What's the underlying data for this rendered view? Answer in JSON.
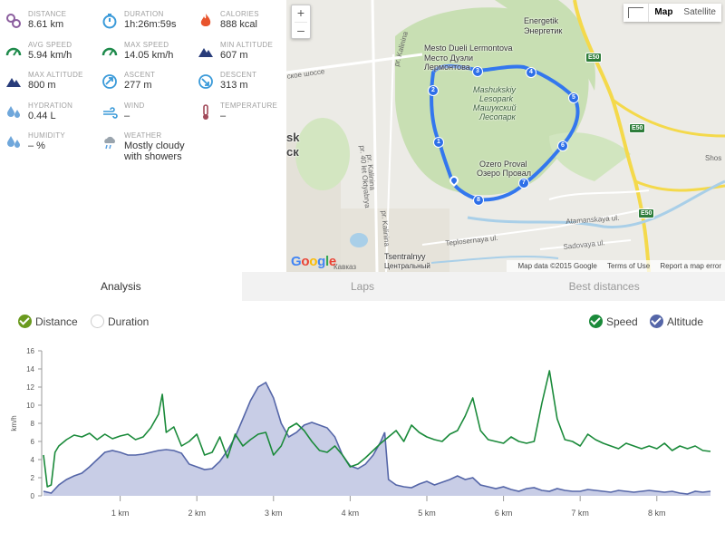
{
  "stats": [
    {
      "label": "DISTANCE",
      "value": "8.61 km",
      "icon": "map-pin-icon",
      "color": "#8b5e9e"
    },
    {
      "label": "DURATION",
      "value": "1h:26m:59s",
      "icon": "stopwatch-icon",
      "color": "#3a9ad9"
    },
    {
      "label": "CALORIES",
      "value": "888 kcal",
      "icon": "flame-icon",
      "color": "#e8542d"
    },
    {
      "label": "AVG SPEED",
      "value": "5.94 km/h",
      "icon": "speedometer-icon",
      "color": "#1e8a4b"
    },
    {
      "label": "MAX SPEED",
      "value": "14.05 km/h",
      "icon": "speedometer-icon",
      "color": "#1e8a4b"
    },
    {
      "label": "MIN ALTITUDE",
      "value": "607 m",
      "icon": "mountain-icon",
      "color": "#283c7a"
    },
    {
      "label": "MAX ALTITUDE",
      "value": "800 m",
      "icon": "mountain-icon",
      "color": "#283c7a"
    },
    {
      "label": "ASCENT",
      "value": "277 m",
      "icon": "ascent-icon",
      "color": "#3a9ad9"
    },
    {
      "label": "DESCENT",
      "value": "313 m",
      "icon": "descent-icon",
      "color": "#3a9ad9"
    },
    {
      "label": "HYDRATION",
      "value": "0.44 L",
      "icon": "water-drops-icon",
      "color": "#6fa7db"
    },
    {
      "label": "WIND",
      "value": "–",
      "icon": "wind-icon",
      "color": "#3a9ad9"
    },
    {
      "label": "TEMPERATURE",
      "value": "–",
      "icon": "thermometer-icon",
      "color": "#a14a5a"
    },
    {
      "label": "HUMIDITY",
      "value": "– %",
      "icon": "water-drops-icon",
      "color": "#6fa7db"
    },
    {
      "label": "WEATHER",
      "value": "Mostly cloudy with showers",
      "icon": "cloud-rain-icon",
      "color": "#9aa4ad"
    }
  ],
  "map": {
    "zoom_in": "+",
    "zoom_out": "–",
    "type_map": "Map",
    "type_satellite": "Satellite",
    "labels": {
      "energetik_en": "Energetik",
      "energetik_ru": "Энергетик",
      "lermontov_en": "Mesto Dueli Lermontova",
      "lermontov_ru1": "Место Дуэли",
      "lermontov_ru2": "Лермонтова",
      "park_en1": "Mashukskiy",
      "park_en2": "Lesopark",
      "park_ru1": "Машукский",
      "park_ru2": "Лесопарк",
      "proval_en": "Ozero Proval",
      "proval_ru": "Озеро Провал",
      "city1": "sk",
      "city2": "ск",
      "tsentr_en": "Tsentralnyy",
      "tsentr_ru": "Центральный",
      "kalinina1": "pr. Kalinina",
      "kalinina2": "pr. Kalinina",
      "kalinina3": "pr. Kalinina",
      "oktyabrya": "pr. 40 let Oktyabrya",
      "shosse": "ское шоссе",
      "teplo": "Teplosernaya ul.",
      "atamanskaya": "Atamanskaya ul.",
      "sadovaya": "Sadovaya ul.",
      "kavkaz": "Кавказ",
      "shos": "Shos",
      "e50a": "E50",
      "e50b": "E50",
      "e50c": "E50"
    },
    "markers": [
      "1",
      "2",
      "3",
      "4",
      "5",
      "6",
      "7",
      "8"
    ],
    "google": "Google",
    "footer": {
      "data": "Map data ©2015 Google",
      "terms": "Terms of Use",
      "report": "Report a map error"
    }
  },
  "tabs": [
    {
      "label": "Analysis",
      "active": true
    },
    {
      "label": "Laps",
      "active": false
    },
    {
      "label": "Best distances",
      "active": false
    }
  ],
  "toggles": {
    "distance": "Distance",
    "duration": "Duration",
    "speed": "Speed",
    "altitude": "Altitude"
  },
  "colors": {
    "speed": "#1a8a3a",
    "altitude": "#5566a8",
    "altitude_fill": "#c8cde6",
    "route": "#3377ee",
    "check": "#6a9a1e"
  },
  "chart_data": {
    "type": "line",
    "ylabel": "km/h",
    "ylim": [
      0,
      16
    ],
    "yticks": [
      "0",
      "2",
      "4",
      "6",
      "8",
      "10",
      "12",
      "14",
      "16"
    ],
    "xlim": [
      0,
      8.7
    ],
    "xticks": [
      {
        "v": 1,
        "label": "1 km"
      },
      {
        "v": 2,
        "label": "2 km"
      },
      {
        "v": 3,
        "label": "3 km"
      },
      {
        "v": 4,
        "label": "4 km"
      },
      {
        "v": 5,
        "label": "5 km"
      },
      {
        "v": 6,
        "label": "6 km"
      },
      {
        "v": 7,
        "label": "7 km"
      },
      {
        "v": 8,
        "label": "8 km"
      }
    ],
    "series": [
      {
        "name": "Speed",
        "x": [
          0,
          0.05,
          0.1,
          0.15,
          0.2,
          0.3,
          0.4,
          0.5,
          0.6,
          0.7,
          0.8,
          0.9,
          1.0,
          1.1,
          1.2,
          1.3,
          1.4,
          1.5,
          1.55,
          1.6,
          1.7,
          1.8,
          1.9,
          2.0,
          2.1,
          2.2,
          2.3,
          2.4,
          2.5,
          2.6,
          2.7,
          2.8,
          2.9,
          3.0,
          3.1,
          3.2,
          3.3,
          3.4,
          3.5,
          3.6,
          3.7,
          3.8,
          3.9,
          4.0,
          4.1,
          4.2,
          4.3,
          4.4,
          4.5,
          4.6,
          4.7,
          4.8,
          4.9,
          5.0,
          5.1,
          5.2,
          5.3,
          5.4,
          5.5,
          5.6,
          5.7,
          5.8,
          5.9,
          6.0,
          6.1,
          6.2,
          6.3,
          6.4,
          6.5,
          6.6,
          6.7,
          6.8,
          6.9,
          7.0,
          7.1,
          7.2,
          7.3,
          7.4,
          7.5,
          7.6,
          7.7,
          7.8,
          7.9,
          8.0,
          8.1,
          8.2,
          8.3,
          8.4,
          8.5,
          8.6,
          8.7
        ],
        "y": [
          4.5,
          1.0,
          1.2,
          4.8,
          5.5,
          6.2,
          6.7,
          6.5,
          6.9,
          6.2,
          6.8,
          6.3,
          6.6,
          6.8,
          6.2,
          6.5,
          7.5,
          9.0,
          11.2,
          7.0,
          7.6,
          5.5,
          6.0,
          6.8,
          4.5,
          4.8,
          6.5,
          4.2,
          6.8,
          5.5,
          6.2,
          6.8,
          7.0,
          4.5,
          5.5,
          7.5,
          8.0,
          7.2,
          6.0,
          5.0,
          4.8,
          5.5,
          4.5,
          3.2,
          3.5,
          4.2,
          5.0,
          5.8,
          6.5,
          7.2,
          6.0,
          7.8,
          7.0,
          6.5,
          6.2,
          6.0,
          6.8,
          7.2,
          8.8,
          10.8,
          7.2,
          6.2,
          6.0,
          5.8,
          6.5,
          6.0,
          5.8,
          6.0,
          10.2,
          13.8,
          8.5,
          6.2,
          6.0,
          5.5,
          6.8,
          6.2,
          5.8,
          5.5,
          5.2,
          5.8,
          5.5,
          5.2,
          5.5,
          5.2,
          5.8,
          5.0,
          5.5,
          5.2,
          5.5,
          5.0,
          4.9
        ]
      },
      {
        "name": "Altitude",
        "x": [
          0,
          0.1,
          0.2,
          0.3,
          0.4,
          0.5,
          0.6,
          0.7,
          0.8,
          0.9,
          1.0,
          1.1,
          1.2,
          1.3,
          1.4,
          1.5,
          1.6,
          1.7,
          1.8,
          1.9,
          2.0,
          2.1,
          2.2,
          2.3,
          2.4,
          2.5,
          2.6,
          2.7,
          2.8,
          2.9,
          3.0,
          3.1,
          3.2,
          3.3,
          3.4,
          3.5,
          3.6,
          3.7,
          3.8,
          3.9,
          4.0,
          4.1,
          4.2,
          4.3,
          4.4,
          4.45,
          4.5,
          4.6,
          4.7,
          4.8,
          4.9,
          5.0,
          5.1,
          5.2,
          5.3,
          5.4,
          5.5,
          5.6,
          5.7,
          5.8,
          5.9,
          6.0,
          6.1,
          6.2,
          6.3,
          6.4,
          6.5,
          6.6,
          6.7,
          6.8,
          6.9,
          7.0,
          7.1,
          7.2,
          7.3,
          7.4,
          7.5,
          7.6,
          7.7,
          7.8,
          7.9,
          8.0,
          8.1,
          8.2,
          8.3,
          8.4,
          8.5,
          8.6,
          8.7
        ],
        "y": [
          0.5,
          0.3,
          1.2,
          1.8,
          2.2,
          2.5,
          3.2,
          4.0,
          4.8,
          5.0,
          4.8,
          4.5,
          4.5,
          4.6,
          4.8,
          5.0,
          5.1,
          5.0,
          4.7,
          3.5,
          3.2,
          2.9,
          3.0,
          3.8,
          5.0,
          6.5,
          8.5,
          10.5,
          12.0,
          12.5,
          10.8,
          8.0,
          6.5,
          7.0,
          7.8,
          8.1,
          7.8,
          7.5,
          6.5,
          4.5,
          3.3,
          3.0,
          3.5,
          4.5,
          6.0,
          7.0,
          1.8,
          1.2,
          1.0,
          0.9,
          1.3,
          1.6,
          1.2,
          1.5,
          1.8,
          2.2,
          1.8,
          2.0,
          1.2,
          1.0,
          0.8,
          1.0,
          0.7,
          0.5,
          0.8,
          0.9,
          0.6,
          0.5,
          0.8,
          0.6,
          0.5,
          0.5,
          0.7,
          0.6,
          0.5,
          0.4,
          0.6,
          0.5,
          0.4,
          0.5,
          0.6,
          0.5,
          0.4,
          0.5,
          0.3,
          0.2,
          0.5,
          0.4,
          0.5
        ]
      }
    ]
  }
}
